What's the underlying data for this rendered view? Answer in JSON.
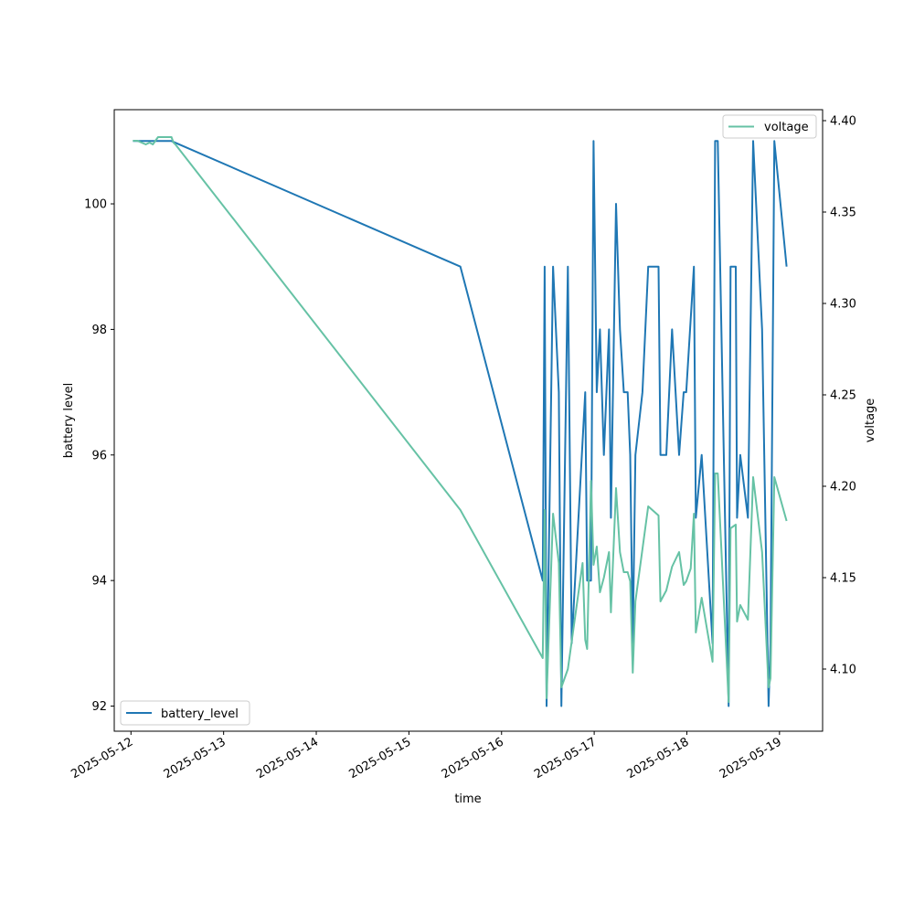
{
  "chart_data": {
    "type": "line",
    "xlabel": "time",
    "ylabel_left": "battery level",
    "ylabel_right": "voltage",
    "x_tick_labels": [
      "2025-05-12",
      "2025-05-13",
      "2025-05-14",
      "2025-05-15",
      "2025-05-16",
      "2025-05-17",
      "2025-05-18",
      "2025-05-19"
    ],
    "x_ticks": [
      "2025-05-12T00:00",
      "2025-05-13T00:00",
      "2025-05-14T00:00",
      "2025-05-15T00:00",
      "2025-05-16T00:00",
      "2025-05-17T00:00",
      "2025-05-18T00:00",
      "2025-05-19T00:00"
    ],
    "xlim": [
      "2025-05-11T19:40",
      "2025-05-19T11:10"
    ],
    "ylim_left": [
      91.6,
      101.5
    ],
    "ylim_right": [
      4.066,
      4.406
    ],
    "y_ticks_left": [
      92,
      94,
      96,
      98,
      100
    ],
    "y_ticks_right": [
      4.1,
      4.15,
      4.2,
      4.25,
      4.3,
      4.35,
      4.4
    ],
    "y_tick_labels_right": [
      "4.10",
      "4.15",
      "4.20",
      "4.25",
      "4.30",
      "4.35",
      "4.40"
    ],
    "series": [
      {
        "name": "battery_level",
        "axis": "left",
        "color": "#1f77b4",
        "legend_position": "lower-left",
        "points": [
          [
            "2025-05-12T00:30",
            101
          ],
          [
            "2025-05-12T10:30",
            101
          ],
          [
            "2025-05-15T13:20",
            99
          ],
          [
            "2025-05-16T10:40",
            94
          ],
          [
            "2025-05-16T11:10",
            99
          ],
          [
            "2025-05-16T11:40",
            92
          ],
          [
            "2025-05-16T13:20",
            99
          ],
          [
            "2025-05-16T14:50",
            97
          ],
          [
            "2025-05-16T15:30",
            92
          ],
          [
            "2025-05-16T17:10",
            99
          ],
          [
            "2025-05-16T18:10",
            93
          ],
          [
            "2025-05-16T21:40",
            97
          ],
          [
            "2025-05-16T22:10",
            94
          ],
          [
            "2025-05-16T23:10",
            94
          ],
          [
            "2025-05-16T23:50",
            101
          ],
          [
            "2025-05-17T00:40",
            97
          ],
          [
            "2025-05-17T01:30",
            98
          ],
          [
            "2025-05-17T02:30",
            96
          ],
          [
            "2025-05-17T03:50",
            98
          ],
          [
            "2025-05-17T04:20",
            95
          ],
          [
            "2025-05-17T05:40",
            100
          ],
          [
            "2025-05-17T06:40",
            98
          ],
          [
            "2025-05-17T07:40",
            97
          ],
          [
            "2025-05-17T08:40",
            97
          ],
          [
            "2025-05-17T09:20",
            96
          ],
          [
            "2025-05-17T10:00",
            93
          ],
          [
            "2025-05-17T10:40",
            96
          ],
          [
            "2025-05-17T12:30",
            97
          ],
          [
            "2025-05-17T14:00",
            99
          ],
          [
            "2025-05-17T16:40",
            99
          ],
          [
            "2025-05-17T17:10",
            96
          ],
          [
            "2025-05-17T18:40",
            96
          ],
          [
            "2025-05-17T20:10",
            98
          ],
          [
            "2025-05-17T22:00",
            96
          ],
          [
            "2025-05-17T23:10",
            97
          ],
          [
            "2025-05-17T23:50",
            97
          ],
          [
            "2025-05-18T01:50",
            99
          ],
          [
            "2025-05-18T02:20",
            95
          ],
          [
            "2025-05-18T03:50",
            96
          ],
          [
            "2025-05-18T06:40",
            93
          ],
          [
            "2025-05-18T07:20",
            101
          ],
          [
            "2025-05-18T08:00",
            101
          ],
          [
            "2025-05-18T10:50",
            92
          ],
          [
            "2025-05-18T11:20",
            99
          ],
          [
            "2025-05-18T12:40",
            99
          ],
          [
            "2025-05-18T13:00",
            95
          ],
          [
            "2025-05-18T13:50",
            96
          ],
          [
            "2025-05-18T15:50",
            95
          ],
          [
            "2025-05-18T17:10",
            101
          ],
          [
            "2025-05-18T19:30",
            98
          ],
          [
            "2025-05-18T21:10",
            92
          ],
          [
            "2025-05-18T21:40",
            93
          ],
          [
            "2025-05-18T22:40",
            101
          ],
          [
            "2025-05-19T01:50",
            99
          ]
        ]
      },
      {
        "name": "voltage",
        "axis": "right",
        "color": "#66c2a5",
        "legend_position": "upper-right",
        "points": [
          [
            "2025-05-12T00:30",
            4.389
          ],
          [
            "2025-05-12T01:40",
            4.389
          ],
          [
            "2025-05-12T03:50",
            4.387
          ],
          [
            "2025-05-12T04:50",
            4.388
          ],
          [
            "2025-05-12T05:40",
            4.387
          ],
          [
            "2025-05-12T07:00",
            4.391
          ],
          [
            "2025-05-12T08:00",
            4.391
          ],
          [
            "2025-05-12T10:30",
            4.391
          ],
          [
            "2025-05-12T11:00",
            4.388
          ],
          [
            "2025-05-12T11:30",
            4.387
          ],
          [
            "2025-05-15T13:20",
            4.187
          ],
          [
            "2025-05-16T10:40",
            4.106
          ],
          [
            "2025-05-16T11:10",
            4.187
          ],
          [
            "2025-05-16T11:40",
            4.084
          ],
          [
            "2025-05-16T13:20",
            4.185
          ],
          [
            "2025-05-16T14:50",
            4.158
          ],
          [
            "2025-05-16T15:30",
            4.09
          ],
          [
            "2025-05-16T17:10",
            4.1
          ],
          [
            "2025-05-16T21:00",
            4.158
          ],
          [
            "2025-05-16T21:40",
            4.116
          ],
          [
            "2025-05-16T22:10",
            4.111
          ],
          [
            "2025-05-16T23:10",
            4.203
          ],
          [
            "2025-05-16T23:50",
            4.157
          ],
          [
            "2025-05-17T00:40",
            4.167
          ],
          [
            "2025-05-17T01:30",
            4.142
          ],
          [
            "2025-05-17T02:30",
            4.15
          ],
          [
            "2025-05-17T03:50",
            4.164
          ],
          [
            "2025-05-17T04:20",
            4.131
          ],
          [
            "2025-05-17T05:40",
            4.199
          ],
          [
            "2025-05-17T06:40",
            4.164
          ],
          [
            "2025-05-17T07:40",
            4.153
          ],
          [
            "2025-05-17T08:40",
            4.153
          ],
          [
            "2025-05-17T09:20",
            4.148
          ],
          [
            "2025-05-17T10:00",
            4.098
          ],
          [
            "2025-05-17T10:40",
            4.137
          ],
          [
            "2025-05-17T14:00",
            4.189
          ],
          [
            "2025-05-17T16:40",
            4.184
          ],
          [
            "2025-05-17T17:10",
            4.137
          ],
          [
            "2025-05-17T18:40",
            4.143
          ],
          [
            "2025-05-17T20:10",
            4.156
          ],
          [
            "2025-05-17T22:00",
            4.164
          ],
          [
            "2025-05-17T23:10",
            4.146
          ],
          [
            "2025-05-17T23:50",
            4.148
          ],
          [
            "2025-05-18T01:00",
            4.155
          ],
          [
            "2025-05-18T01:50",
            4.185
          ],
          [
            "2025-05-18T02:20",
            4.12
          ],
          [
            "2025-05-18T03:50",
            4.139
          ],
          [
            "2025-05-18T06:40",
            4.104
          ],
          [
            "2025-05-18T07:20",
            4.207
          ],
          [
            "2025-05-18T08:00",
            4.207
          ],
          [
            "2025-05-18T10:50",
            4.082
          ],
          [
            "2025-05-18T11:20",
            4.177
          ],
          [
            "2025-05-18T12:40",
            4.179
          ],
          [
            "2025-05-18T13:00",
            4.126
          ],
          [
            "2025-05-18T13:50",
            4.135
          ],
          [
            "2025-05-18T15:50",
            4.127
          ],
          [
            "2025-05-18T17:10",
            4.205
          ],
          [
            "2025-05-18T19:30",
            4.164
          ],
          [
            "2025-05-18T21:10",
            4.09
          ],
          [
            "2025-05-18T21:40",
            4.095
          ],
          [
            "2025-05-18T22:40",
            4.205
          ],
          [
            "2025-05-19T01:50",
            4.181
          ]
        ]
      }
    ],
    "grid": false
  }
}
